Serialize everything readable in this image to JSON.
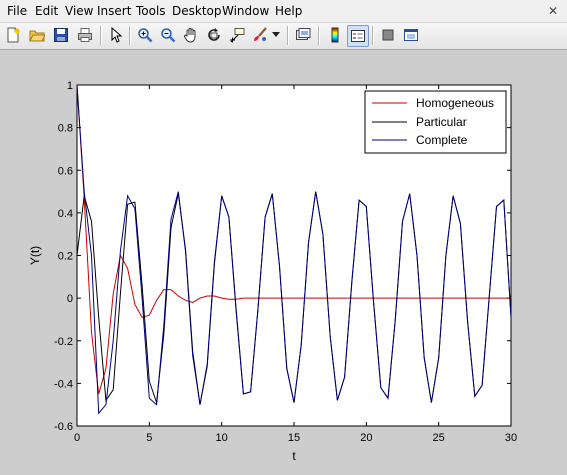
{
  "menu": [
    "File",
    "Edit",
    "View",
    "Insert",
    "Tools",
    "Desktop",
    "Window",
    "Help"
  ],
  "toolbar_icons": [
    "new-figure-icon",
    "open-file-icon",
    "save-icon",
    "print-icon",
    "edit-plot-icon",
    "zoom-in-icon",
    "zoom-out-icon",
    "pan-icon",
    "rotate-3d-icon",
    "data-cursor-icon",
    "brush-icon",
    "brush-dropdown-icon",
    "link-plot-icon",
    "colorbar-icon",
    "legend-icon",
    "hide-plot-tools-icon",
    "show-plot-tools-icon"
  ],
  "chart_data": {
    "type": "line",
    "title": "",
    "xlabel": "t",
    "ylabel": "Y(t)",
    "xlim": [
      0,
      30
    ],
    "ylim": [
      -0.6,
      1
    ],
    "xticks": [
      0,
      5,
      10,
      15,
      20,
      25,
      30
    ],
    "yticks": [
      -0.6,
      -0.4,
      -0.2,
      0,
      0.2,
      0.4,
      0.6,
      0.8,
      1
    ],
    "x_tick_labels": [
      "0",
      "5",
      "10",
      "15",
      "20",
      "25",
      "30"
    ],
    "y_tick_labels": [
      "-0.6",
      "-0.4",
      "-0.2",
      "0",
      "0.2",
      "0.4",
      "0.6",
      "0.8",
      "1"
    ],
    "grid": false,
    "legend_position": "top-right",
    "x": [
      0,
      0.5,
      1,
      1.5,
      2,
      2.5,
      3,
      3.5,
      4,
      4.5,
      5,
      5.5,
      6,
      6.5,
      7,
      7.5,
      8,
      8.5,
      9,
      9.5,
      10,
      10.5,
      11,
      11.5,
      12,
      12.5,
      13,
      13.5,
      14,
      14.5,
      15,
      15.5,
      16,
      16.5,
      17,
      17.5,
      18,
      18.5,
      19,
      19.5,
      20,
      20.5,
      21,
      21.5,
      22,
      22.5,
      23,
      23.5,
      24,
      24.5,
      25,
      25.5,
      26,
      26.5,
      27,
      27.5,
      28,
      28.5,
      29,
      29.5,
      30
    ],
    "series": [
      {
        "name": "Homogeneous",
        "color": "#cc0000",
        "values": [
          1.0,
          0.47,
          -0.16,
          -0.45,
          -0.33,
          0.02,
          0.2,
          0.14,
          -0.03,
          -0.09,
          -0.08,
          -0.01,
          0.04,
          0.04,
          0.01,
          -0.01,
          -0.02,
          0,
          0.01,
          0.01,
          0,
          -0.005,
          -0.005,
          0,
          0,
          0,
          0,
          0,
          0,
          0,
          0,
          0,
          0,
          0,
          0,
          0,
          0,
          0,
          0,
          0,
          0,
          0,
          0,
          0,
          0,
          0,
          0,
          0,
          0,
          0,
          0,
          0,
          0,
          0,
          0,
          0,
          0,
          0,
          0,
          0,
          0
        ]
      },
      {
        "name": "Particular",
        "color": "#000000",
        "values": [
          0.2,
          0.48,
          0.36,
          -0.09,
          -0.48,
          -0.43,
          0.02,
          0.44,
          0.45,
          0.06,
          -0.39,
          -0.49,
          -0.17,
          0.33,
          0.49,
          0.23,
          -0.25,
          -0.5,
          -0.32,
          0.16,
          0.48,
          0.38,
          -0.05,
          -0.45,
          -0.44,
          -0.06,
          0.38,
          0.49,
          0.15,
          -0.33,
          -0.49,
          -0.22,
          0.26,
          0.5,
          0.3,
          -0.18,
          -0.48,
          -0.37,
          0.08,
          0.46,
          0.43,
          -0.02,
          -0.42,
          -0.47,
          -0.1,
          0.36,
          0.49,
          0.2,
          -0.28,
          -0.49,
          -0.28,
          0.2,
          0.48,
          0.35,
          -0.11,
          -0.46,
          -0.41,
          0.01,
          0.43,
          0.46,
          -0.09
        ]
      },
      {
        "name": "Complete",
        "color": "#000080",
        "values": [
          1.0,
          0.5,
          0.2,
          -0.54,
          -0.5,
          -0.2,
          0.22,
          0.48,
          0.42,
          0.0,
          -0.47,
          -0.5,
          -0.13,
          0.37,
          0.5,
          0.22,
          -0.27,
          -0.5,
          -0.31,
          0.17,
          0.48,
          0.38,
          -0.06,
          -0.45,
          -0.44,
          -0.06,
          0.38,
          0.49,
          0.15,
          -0.33,
          -0.49,
          -0.22,
          0.26,
          0.5,
          0.3,
          -0.18,
          -0.48,
          -0.37,
          0.08,
          0.46,
          0.43,
          -0.02,
          -0.42,
          -0.47,
          -0.1,
          0.36,
          0.49,
          0.2,
          -0.28,
          -0.49,
          -0.28,
          0.2,
          0.48,
          0.35,
          -0.11,
          -0.46,
          -0.41,
          0.01,
          0.43,
          0.46,
          -0.09
        ]
      }
    ]
  }
}
